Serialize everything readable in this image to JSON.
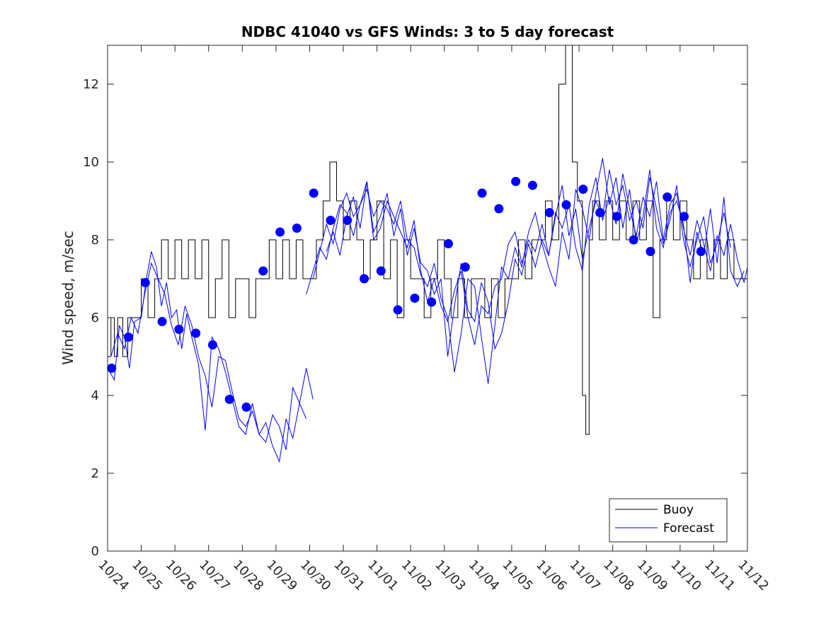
{
  "chart_data": {
    "type": "line",
    "title": "NDBC 41040 vs GFS Winds: 3 to 5 day forecast",
    "xlabel": "",
    "ylabel": "Wind speed, m/sec",
    "x_ticks": [
      "10/24",
      "10/25",
      "10/26",
      "10/27",
      "10/28",
      "10/29",
      "10/30",
      "10/31",
      "11/01",
      "11/02",
      "11/03",
      "11/04",
      "11/05",
      "11/06",
      "11/07",
      "11/08",
      "11/09",
      "11/10",
      "11/11",
      "11/12"
    ],
    "x_range_days": [
      0,
      19
    ],
    "ylim": [
      0,
      13
    ],
    "y_ticks": [
      0,
      2,
      4,
      6,
      8,
      10,
      12
    ],
    "y_tick_labels": [
      "0",
      "2",
      "4",
      "6",
      "8",
      "10",
      "12"
    ],
    "legend": {
      "position": "bottom-right",
      "entries": [
        "Buoy",
        "Forecast"
      ]
    },
    "colors": {
      "buoy": "#000000",
      "forecast": "#0000ff",
      "axis": "#262626"
    },
    "series": [
      {
        "name": "Buoy",
        "style": "step",
        "x_days": [
          0.0,
          0.1,
          0.2,
          0.3,
          0.45,
          0.6,
          0.8,
          1.0,
          1.2,
          1.4,
          1.6,
          1.8,
          2.0,
          2.2,
          2.4,
          2.6,
          2.8,
          3.0,
          3.2,
          3.4,
          3.6,
          3.8,
          4.0,
          4.2,
          4.4,
          4.6,
          4.8,
          5.0,
          5.2,
          5.4,
          5.6,
          5.8,
          6.0,
          6.2,
          6.4,
          6.6,
          6.8,
          7.0,
          7.2,
          7.4,
          7.6,
          7.8,
          8.0,
          8.2,
          8.4,
          8.6,
          8.8,
          9.0,
          9.2,
          9.4,
          9.6,
          9.8,
          10.0,
          10.2,
          10.4,
          10.6,
          10.8,
          11.0,
          11.2,
          11.4,
          11.6,
          11.8,
          12.0,
          12.2,
          12.4,
          12.6,
          12.8,
          13.0,
          13.2,
          13.4,
          13.6,
          13.8,
          13.95,
          14.1,
          14.2,
          14.3,
          14.4,
          14.6,
          14.8,
          15.0,
          15.2,
          15.4,
          15.6,
          15.8,
          16.0,
          16.2,
          16.4,
          16.6,
          16.8,
          17.0,
          17.2,
          17.4,
          17.6,
          17.8,
          18.0,
          18.2,
          18.4,
          18.6,
          18.8,
          19.0
        ],
        "values": [
          5,
          6,
          5,
          6,
          5,
          6,
          6,
          7,
          6,
          7,
          8,
          7,
          8,
          7,
          8,
          7,
          8,
          6,
          7,
          8,
          6,
          7,
          7,
          6,
          7,
          7,
          8,
          7,
          8,
          7,
          8,
          7,
          7,
          8,
          9,
          10,
          9,
          8,
          9,
          8,
          7,
          8,
          9,
          7,
          8,
          6,
          8,
          7,
          7,
          6,
          7,
          8,
          7,
          6,
          7,
          6,
          7,
          7,
          6,
          7,
          6,
          7,
          7,
          8,
          7,
          8,
          8,
          9,
          8,
          12,
          13,
          10,
          9,
          4,
          3,
          8,
          9,
          8,
          9,
          8,
          9,
          8,
          9,
          8,
          9,
          6,
          8,
          9,
          8,
          9,
          8,
          7,
          8,
          7,
          8,
          7,
          8,
          7,
          7,
          7
        ]
      },
      {
        "name": "Forecast",
        "style": "line",
        "x_days": [
          0.0,
          0.2,
          0.35,
          0.5,
          0.65,
          0.8,
          1.0,
          1.15,
          1.3,
          1.45,
          1.6,
          1.75,
          1.9,
          2.05,
          2.2,
          2.35,
          2.5,
          2.7,
          2.9,
          3.1,
          3.3,
          3.5,
          3.7,
          3.9,
          4.1,
          4.3,
          4.5,
          4.7,
          4.9,
          5.1,
          5.3,
          5.5,
          5.7,
          5.9,
          6.1
        ],
        "values": [
          4.7,
          4.4,
          5.8,
          5.5,
          4.7,
          5.9,
          6.0,
          7.0,
          7.7,
          7.3,
          6.3,
          6.9,
          6.0,
          6.2,
          5.2,
          6.1,
          5.5,
          4.8,
          3.1,
          5.5,
          5.2,
          4.6,
          3.9,
          3.2,
          3.0,
          3.8,
          3.0,
          2.8,
          3.5,
          3.2,
          2.6,
          4.2,
          3.8,
          4.7,
          3.9
        ]
      },
      {
        "name": "Forecast",
        "style": "line",
        "x_days": [
          0.1,
          0.3,
          0.5,
          0.7,
          0.9,
          1.1,
          1.3,
          1.5,
          1.7,
          1.9,
          2.1,
          2.3,
          2.5,
          2.7,
          2.9,
          3.1,
          3.3,
          3.5,
          3.7,
          3.9,
          4.1,
          4.3,
          4.5,
          4.7,
          4.9,
          5.1,
          5.3,
          5.5,
          5.7,
          5.9
        ],
        "values": [
          5.0,
          5.6,
          5.2,
          6.0,
          5.6,
          6.6,
          7.4,
          7.0,
          6.6,
          5.8,
          5.3,
          6.3,
          5.8,
          5.0,
          4.5,
          3.7,
          5.0,
          4.9,
          4.1,
          3.4,
          3.2,
          3.6,
          3.0,
          3.3,
          2.7,
          2.3,
          3.4,
          2.9,
          3.8,
          3.4
        ]
      },
      {
        "name": "Forecast",
        "style": "line",
        "x_days": [
          5.9,
          6.1,
          6.3,
          6.5,
          6.7,
          6.9,
          7.1,
          7.3,
          7.5,
          7.7,
          7.9,
          8.1,
          8.3,
          8.5,
          8.7,
          8.9,
          9.1,
          9.3,
          9.5,
          9.7,
          9.9,
          10.1,
          10.3,
          10.5,
          10.7,
          10.9,
          11.1,
          11.3,
          11.5,
          11.7,
          11.9,
          12.1,
          12.3,
          12.5,
          12.7,
          12.9,
          13.1,
          13.3,
          13.5,
          13.7,
          13.9,
          14.1,
          14.3,
          14.5,
          14.7,
          14.9,
          15.1,
          15.3,
          15.5,
          15.7,
          15.9,
          16.1,
          16.3,
          16.5,
          16.7,
          16.9,
          17.1,
          17.3,
          17.5,
          17.7,
          17.9,
          18.1,
          18.3,
          18.5,
          18.7,
          18.9,
          19.0
        ],
        "values": [
          6.6,
          7.2,
          7.8,
          7.5,
          8.3,
          8.9,
          8.7,
          8.1,
          8.9,
          9.5,
          8.2,
          8.6,
          9.2,
          8.1,
          8.8,
          7.6,
          8.3,
          7.4,
          7.2,
          6.6,
          7.0,
          5.0,
          6.3,
          7.4,
          6.2,
          5.9,
          6.9,
          6.4,
          5.2,
          5.6,
          6.4,
          7.5,
          7.1,
          7.9,
          7.3,
          8.0,
          7.6,
          8.7,
          8.3,
          8.9,
          7.8,
          7.2,
          8.9,
          9.6,
          8.5,
          9.1,
          8.4,
          9.7,
          8.8,
          8.1,
          9.1,
          8.6,
          9.5,
          8.0,
          8.9,
          9.2,
          8.3,
          7.6,
          8.5,
          7.9,
          7.2,
          8.1,
          7.6,
          8.4,
          7.5,
          6.9,
          7.3
        ]
      },
      {
        "name": "Forecast",
        "style": "line",
        "x_days": [
          6.1,
          6.3,
          6.5,
          6.7,
          6.9,
          7.1,
          7.3,
          7.5,
          7.7,
          7.9,
          8.1,
          8.3,
          8.5,
          8.7,
          8.9,
          9.1,
          9.3,
          9.5,
          9.7,
          9.9,
          10.1,
          10.3,
          10.5,
          10.7,
          10.9,
          11.1,
          11.3,
          11.5,
          11.7,
          11.9,
          12.1,
          12.3,
          12.5,
          12.7,
          12.9,
          13.1,
          13.3,
          13.5,
          13.7,
          13.9,
          14.1,
          14.3,
          14.5,
          14.7,
          14.9,
          15.1,
          15.3,
          15.5,
          15.7,
          15.9,
          16.1,
          16.3,
          16.5,
          16.7,
          16.9,
          17.1,
          17.3,
          17.5,
          17.7,
          17.9,
          18.1,
          18.3,
          18.5,
          18.7,
          18.9
        ],
        "values": [
          7.0,
          7.7,
          8.4,
          7.9,
          8.8,
          9.2,
          8.6,
          8.9,
          9.3,
          8.6,
          9.0,
          8.8,
          8.4,
          9.0,
          8.0,
          7.8,
          7.1,
          6.8,
          7.4,
          6.5,
          6.0,
          4.6,
          5.6,
          7.0,
          6.8,
          5.5,
          4.3,
          5.8,
          7.3,
          7.0,
          7.8,
          7.3,
          8.2,
          8.7,
          7.9,
          7.3,
          6.8,
          8.2,
          7.5,
          9.3,
          8.8,
          8.0,
          9.2,
          10.1,
          8.9,
          9.6,
          8.3,
          9.3,
          7.9,
          8.6,
          9.8,
          8.3,
          7.8,
          8.7,
          9.0,
          8.4,
          6.9,
          8.2,
          7.6,
          8.8,
          7.4,
          9.1,
          7.2,
          6.8,
          7.2
        ]
      },
      {
        "name": "Forecast",
        "style": "line",
        "x_days": [
          6.5,
          6.7,
          6.9,
          7.1,
          7.3,
          7.5,
          7.7,
          7.9,
          8.1,
          8.3,
          8.5,
          8.7,
          8.9,
          9.1,
          9.3,
          9.5,
          9.7,
          9.9,
          10.1,
          10.3,
          10.5,
          10.7,
          10.9,
          11.1,
          11.3,
          11.5,
          11.7,
          11.9,
          12.1,
          12.3,
          12.5,
          12.7,
          12.9,
          13.1,
          13.3,
          13.5,
          13.7,
          13.9,
          14.1,
          14.3,
          14.5,
          14.7,
          14.9,
          15.1,
          15.3,
          15.5,
          15.7,
          15.9,
          16.1,
          16.3,
          16.5,
          16.7,
          16.9,
          17.1,
          17.3,
          17.5,
          17.7,
          17.9,
          18.1,
          18.3,
          18.5
        ],
        "values": [
          7.7,
          8.2,
          7.6,
          8.6,
          9.1,
          8.3,
          9.5,
          8.0,
          8.3,
          9.0,
          8.6,
          8.2,
          7.8,
          8.5,
          7.2,
          6.4,
          7.0,
          6.3,
          5.9,
          6.7,
          7.2,
          6.0,
          5.3,
          6.3,
          6.1,
          6.8,
          7.0,
          7.9,
          8.2,
          7.4,
          8.0,
          7.7,
          8.4,
          7.6,
          8.6,
          9.4,
          8.1,
          8.8,
          7.5,
          8.3,
          9.0,
          8.6,
          9.8,
          8.9,
          9.4,
          8.5,
          9.0,
          8.3,
          9.6,
          8.8,
          7.9,
          8.5,
          9.4,
          8.0,
          7.3,
          8.0,
          8.6,
          7.4,
          7.9,
          8.7,
          7.8
        ]
      }
    ],
    "forecast_points": {
      "x_days": [
        0.12,
        0.62,
        1.12,
        1.62,
        2.12,
        2.62,
        3.12,
        3.62,
        4.12,
        4.62,
        5.12,
        5.62,
        6.12,
        6.62,
        7.12,
        7.62,
        8.12,
        8.62,
        9.12,
        9.62,
        10.12,
        10.62,
        11.12,
        11.62,
        12.12,
        12.62,
        13.12,
        13.62,
        14.12,
        14.62,
        15.12,
        15.62,
        16.12,
        16.62,
        17.12,
        17.62
      ],
      "values": [
        4.7,
        5.5,
        6.9,
        5.9,
        5.7,
        5.6,
        5.3,
        3.9,
        3.7,
        7.2,
        8.2,
        8.3,
        9.2,
        8.5,
        8.5,
        7.0,
        7.2,
        6.2,
        6.5,
        6.4,
        7.9,
        7.3,
        9.2,
        8.8,
        9.5,
        9.4,
        8.7,
        8.9,
        9.3,
        8.7,
        8.6,
        8.0,
        7.7,
        9.1,
        8.6,
        7.7
      ]
    }
  }
}
